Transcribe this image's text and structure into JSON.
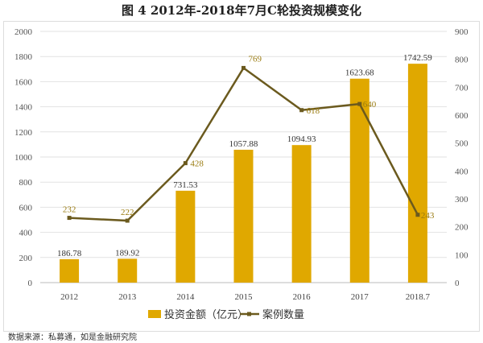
{
  "title": "图 4     2012年-2018年7月C轮投资规模变化",
  "source": "数据来源：私募通，如是金融研究院",
  "chart_data": {
    "type": "bar+line",
    "categories": [
      "2012",
      "2013",
      "2014",
      "2015",
      "2016",
      "2017",
      "2018.7"
    ],
    "series": [
      {
        "name": "投资金额（亿元）",
        "type": "bar",
        "axis": "left",
        "color": "#e0a800",
        "values": [
          186.78,
          189.92,
          731.53,
          1057.88,
          1094.93,
          1623.68,
          1742.59
        ],
        "labels": [
          "186.78",
          "189.92",
          "731.53",
          "1057.88",
          "1094.93",
          "1623.68",
          "1742.59"
        ]
      },
      {
        "name": "案例数量",
        "type": "line",
        "axis": "right",
        "color": "#6b5a1e",
        "values": [
          232,
          222,
          428,
          769,
          618,
          640,
          243
        ],
        "labels": [
          "232",
          "222",
          "428",
          "769",
          "618",
          "640",
          "243"
        ]
      }
    ],
    "ylim_left": [
      0,
      2000
    ],
    "yticks_left": [
      0,
      200,
      400,
      600,
      800,
      1000,
      1200,
      1400,
      1600,
      1800,
      2000
    ],
    "ylim_right": [
      0,
      900
    ],
    "yticks_right": [
      0,
      100,
      200,
      300,
      400,
      500,
      600,
      700,
      800,
      900
    ],
    "grid": true,
    "legend": "bottom"
  }
}
